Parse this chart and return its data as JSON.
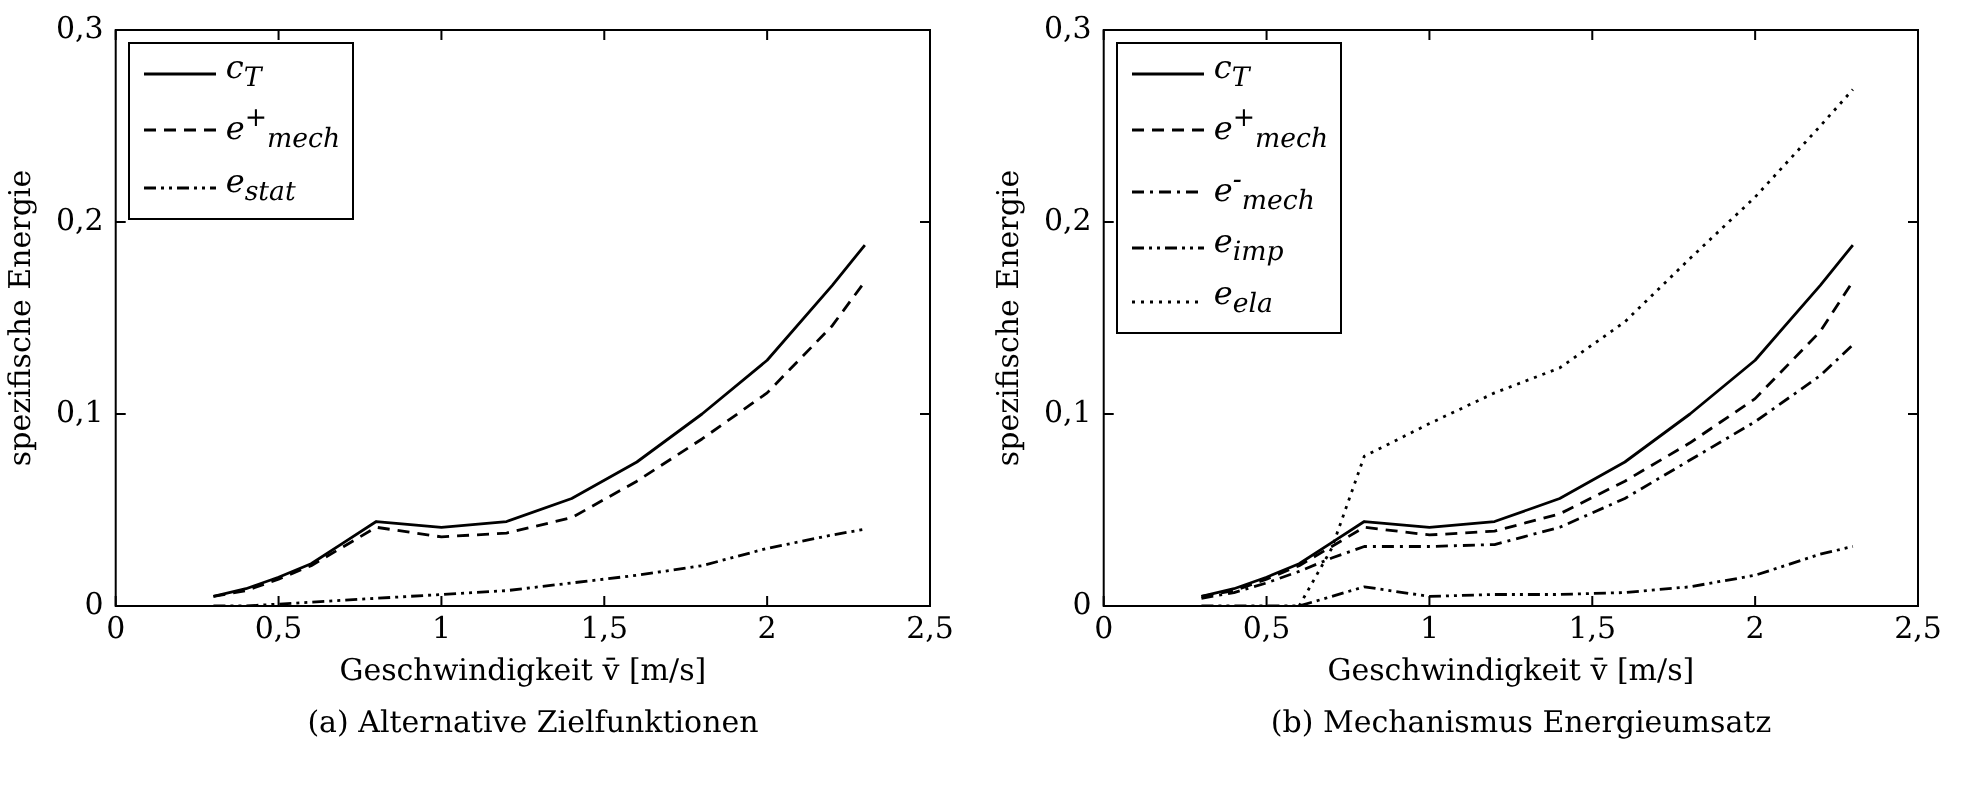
{
  "chart_data": [
    {
      "type": "line",
      "xlabel": "Geschwindigkeit v̄ [m/s]",
      "ylabel": "spezifische Energie",
      "x": [
        0.3,
        0.4,
        0.5,
        0.6,
        0.7,
        0.8,
        1.0,
        1.2,
        1.4,
        1.6,
        1.8,
        2.0,
        2.2,
        2.3
      ],
      "series": [
        {
          "name": "c$_{T}$",
          "color": "#000000",
          "line_style": "solid",
          "values": [
            0.005,
            0.009,
            0.015,
            0.022,
            0.033,
            0.044,
            0.041,
            0.044,
            0.056,
            0.075,
            0.1,
            0.128,
            0.167,
            0.188
          ]
        },
        {
          "name": "e$^{+}$$_{mech}$",
          "color": "#000000",
          "line_style": "dashed",
          "values": [
            0.005,
            0.008,
            0.014,
            0.021,
            0.031,
            0.041,
            0.036,
            0.038,
            0.046,
            0.065,
            0.087,
            0.111,
            0.146,
            0.169
          ]
        },
        {
          "name": "e$_{stat}$",
          "color": "#000000",
          "line_style": "dashdotdot",
          "values": [
            0.0,
            0.0,
            0.001,
            0.002,
            0.003,
            0.004,
            0.006,
            0.008,
            0.012,
            0.016,
            0.021,
            0.03,
            0.037,
            0.04
          ]
        }
      ],
      "xlim": [
        0,
        2.5
      ],
      "xticks": [
        0,
        {
          "value": 0.5,
          "label": "0,5"
        },
        1,
        {
          "value": 1.5,
          "label": "1,5"
        },
        2,
        {
          "value": 2.5,
          "label": "2,5"
        }
      ],
      "ylim": [
        0,
        0.3
      ],
      "yticks": [
        0,
        {
          "value": 0.1,
          "label": "0,1"
        },
        {
          "value": 0.2,
          "label": "0,2"
        },
        {
          "value": 0.3,
          "label": "0,3"
        }
      ],
      "grid": false,
      "legend": "top left",
      "marker": "none",
      "annotations": [
        "(a) Alternative Zielfunktionen"
      ]
    },
    {
      "type": "line",
      "xlabel": "Geschwindigkeit v̄ [m/s]",
      "ylabel": "spezifische Energie",
      "x": [
        0.3,
        0.4,
        0.5,
        0.6,
        0.7,
        0.8,
        1.0,
        1.2,
        1.4,
        1.6,
        1.8,
        2.0,
        2.2,
        2.3
      ],
      "series": [
        {
          "name": "c$_{T}$",
          "color": "#000000",
          "line_style": "solid",
          "values": [
            0.005,
            0.009,
            0.015,
            0.022,
            0.033,
            0.044,
            0.041,
            0.044,
            0.056,
            0.075,
            0.1,
            0.128,
            0.167,
            0.188
          ]
        },
        {
          "name": "e$^{+}$$_{mech}$",
          "color": "#000000",
          "line_style": "dashed",
          "values": [
            0.005,
            0.008,
            0.014,
            0.021,
            0.031,
            0.041,
            0.037,
            0.039,
            0.048,
            0.065,
            0.085,
            0.108,
            0.143,
            0.169
          ]
        },
        {
          "name": "e$^{-}$$_{mech}$",
          "color": "#000000",
          "line_style": "dashdot",
          "values": [
            0.004,
            0.007,
            0.012,
            0.018,
            0.025,
            0.031,
            0.031,
            0.032,
            0.041,
            0.056,
            0.076,
            0.096,
            0.12,
            0.136
          ]
        },
        {
          "name": "e$_{imp}$",
          "color": "#000000",
          "line_style": "dashdotdot",
          "values": [
            0.0,
            0.0,
            0.0,
            0.0,
            0.005,
            0.01,
            0.005,
            0.006,
            0.006,
            0.007,
            0.01,
            0.016,
            0.027,
            0.031
          ]
        },
        {
          "name": "e$_{ela}$",
          "color": "#000000",
          "line_style": "dotted",
          "values": [
            null,
            null,
            null,
            0.0,
            0.03,
            0.078,
            0.095,
            0.111,
            0.124,
            0.148,
            0.181,
            0.213,
            0.25,
            0.269
          ]
        }
      ],
      "xlim": [
        0,
        2.5
      ],
      "xticks": [
        0,
        {
          "value": 0.5,
          "label": "0,5"
        },
        1,
        {
          "value": 1.5,
          "label": "1,5"
        },
        2,
        {
          "value": 2.5,
          "label": "2,5"
        }
      ],
      "ylim": [
        0,
        0.3
      ],
      "yticks": [
        0,
        {
          "value": 0.1,
          "label": "0,1"
        },
        {
          "value": 0.2,
          "label": "0,2"
        },
        {
          "value": 0.3,
          "label": "0,3"
        }
      ],
      "grid": false,
      "legend": "top left",
      "marker": "none",
      "annotations": [
        "(b) Mechanismus Energieumsatz"
      ]
    }
  ]
}
